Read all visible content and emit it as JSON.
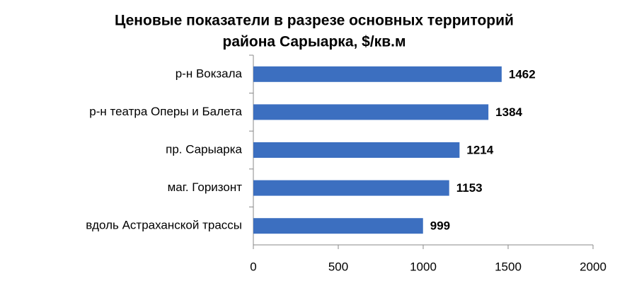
{
  "chart_data": {
    "type": "barh",
    "title": [
      "Ценовые показатели в разрезе основных территорий",
      "района Сарыарка, $/кв.м"
    ],
    "categories": [
      "р-н Вокзала",
      "р-н театра Оперы и Балета",
      "пр. Сарыарка",
      "маг. Горизонт",
      "вдоль Астраханской трассы"
    ],
    "values": [
      1462,
      1384,
      1214,
      1153,
      999
    ],
    "color": "#3c6fc0",
    "xlim": [
      0,
      2000
    ],
    "xticks": [
      0,
      500,
      1000,
      1500,
      2000
    ],
    "grid": false
  }
}
